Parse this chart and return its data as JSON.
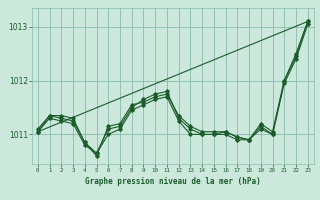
{
  "bg_color": "#cce8dc",
  "grid_color": "#88bbaa",
  "line_color": "#1a5c2a",
  "title": "Graphe pression niveau de la mer (hPa)",
  "xlim": [
    -0.5,
    23.5
  ],
  "ylim": [
    1010.45,
    1013.35
  ],
  "yticks": [
    1011,
    1012,
    1013
  ],
  "xticks": [
    0,
    1,
    2,
    3,
    4,
    5,
    6,
    7,
    8,
    9,
    10,
    11,
    12,
    13,
    14,
    15,
    16,
    17,
    18,
    19,
    20,
    21,
    22,
    23
  ],
  "series1": {
    "x": [
      0,
      1,
      2,
      3,
      4,
      5,
      6,
      7,
      8,
      9,
      10,
      11,
      12,
      13,
      14,
      15,
      16,
      17,
      18,
      19,
      20,
      21,
      22,
      23
    ],
    "y": [
      1011.1,
      1011.35,
      1011.35,
      1011.3,
      1010.85,
      1010.6,
      1011.15,
      1011.2,
      1011.55,
      1011.6,
      1011.7,
      1011.75,
      1011.35,
      1011.15,
      1011.05,
      1011.05,
      1011.05,
      1010.95,
      1010.9,
      1011.2,
      1011.05,
      1012.0,
      1012.5,
      1013.1
    ]
  },
  "series2": {
    "x": [
      0,
      1,
      2,
      3,
      4,
      5,
      6,
      7,
      8,
      9,
      10,
      11,
      12,
      13,
      14,
      15,
      16,
      17,
      18,
      19,
      20,
      21,
      22,
      23
    ],
    "y": [
      1011.05,
      1011.35,
      1011.3,
      1011.25,
      1010.85,
      1010.65,
      1011.1,
      1011.15,
      1011.5,
      1011.65,
      1011.75,
      1011.8,
      1011.3,
      1011.1,
      1011.0,
      1011.0,
      1011.05,
      1010.95,
      1010.9,
      1011.15,
      1011.0,
      1012.0,
      1012.45,
      1013.1
    ]
  },
  "series3": {
    "x": [
      0,
      1,
      2,
      3,
      4,
      5,
      6,
      7,
      8,
      9,
      10,
      11,
      12,
      13,
      14,
      15,
      16,
      17,
      18,
      19,
      20,
      21,
      22,
      23
    ],
    "y": [
      1011.05,
      1011.3,
      1011.25,
      1011.2,
      1010.8,
      1010.65,
      1011.0,
      1011.1,
      1011.45,
      1011.55,
      1011.65,
      1011.7,
      1011.25,
      1011.0,
      1011.0,
      1011.0,
      1011.0,
      1010.9,
      1010.9,
      1011.1,
      1011.0,
      1011.95,
      1012.4,
      1013.05
    ]
  },
  "series_linear": {
    "x": [
      0,
      23
    ],
    "y": [
      1011.05,
      1013.1
    ]
  },
  "figsize": [
    3.2,
    2.0
  ],
  "dpi": 100
}
